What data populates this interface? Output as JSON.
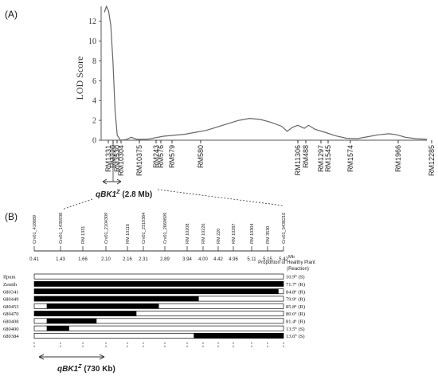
{
  "panel_a_label": "(A)",
  "panel_b_label": "(B)",
  "chart_data": [
    {
      "type": "line",
      "ylabel": "LOD Score",
      "yticks": [
        0,
        2,
        4,
        6,
        8,
        10,
        12
      ],
      "ylim": [
        0,
        13.5
      ],
      "markers": [
        "RM1331",
        "RM220",
        "RM3530",
        "RM10304",
        "RM10375",
        "RM243",
        "RM576",
        "RM579",
        "RM580",
        "RM11306",
        "RM488",
        "RM1297",
        "RM1545",
        "RM1574",
        "RM1966",
        "RM12285"
      ],
      "series": [
        {
          "values": [
            {
              "pos": 0,
              "lod": 12.9
            },
            {
              "pos": 2,
              "lod": 13.5
            },
            {
              "pos": 4,
              "lod": 13.0
            },
            {
              "pos": 6,
              "lod": 11.6
            },
            {
              "pos": 8,
              "lod": 8.0
            },
            {
              "pos": 10,
              "lod": 3.0
            },
            {
              "pos": 12,
              "lod": 0.5
            },
            {
              "pos": 15,
              "lod": 0.0
            },
            {
              "pos": 20,
              "lod": 0.05
            },
            {
              "pos": 25,
              "lod": 0.3
            },
            {
              "pos": 30,
              "lod": 0.1
            },
            {
              "pos": 40,
              "lod": 0.1
            },
            {
              "pos": 55,
              "lod": 0.4
            },
            {
              "pos": 75,
              "lod": 0.6
            },
            {
              "pos": 95,
              "lod": 1.0
            },
            {
              "pos": 110,
              "lod": 1.5
            },
            {
              "pos": 125,
              "lod": 2.0
            },
            {
              "pos": 135,
              "lod": 2.2
            },
            {
              "pos": 145,
              "lod": 2.1
            },
            {
              "pos": 155,
              "lod": 1.8
            },
            {
              "pos": 165,
              "lod": 1.4
            },
            {
              "pos": 170,
              "lod": 0.9
            },
            {
              "pos": 175,
              "lod": 1.3
            },
            {
              "pos": 180,
              "lod": 1.5
            },
            {
              "pos": 186,
              "lod": 1.2
            },
            {
              "pos": 190,
              "lod": 1.5
            },
            {
              "pos": 196,
              "lod": 1.1
            },
            {
              "pos": 205,
              "lod": 0.8
            },
            {
              "pos": 215,
              "lod": 0.45
            },
            {
              "pos": 225,
              "lod": 0.2
            },
            {
              "pos": 235,
              "lod": 0.15
            },
            {
              "pos": 245,
              "lod": 0.35
            },
            {
              "pos": 255,
              "lod": 0.55
            },
            {
              "pos": 265,
              "lod": 0.65
            },
            {
              "pos": 272,
              "lod": 0.55
            },
            {
              "pos": 280,
              "lod": 0.3
            },
            {
              "pos": 290,
              "lod": 0.15
            },
            {
              "pos": 300,
              "lod": 0.1
            }
          ]
        }
      ],
      "interval_label": "qBK1",
      "interval_superscript": "Z",
      "interval_size": "(2.8 Mb)"
    },
    {
      "type": "table",
      "markers": [
        "Crv01_418689",
        "Crv01_1435938",
        "RM 1331",
        "Crv01_2104309",
        "RM 10116",
        "Crv01_2310384",
        "Crv01_2669699",
        "RM 10208",
        "RM 10226",
        "RM 220",
        "RM 10287",
        "RM 10304",
        "RM 3530",
        "Crv01_5436210"
      ],
      "positions": [
        "0.41",
        "1.43",
        "1.66",
        "2.10",
        "2.16",
        "2.31",
        "2.89",
        "3.94",
        "4.00",
        "4.42",
        "4.96",
        "5.11",
        "5.15",
        "5.42"
      ],
      "position_unit": "Mb",
      "phenotype_header": "Proportion of Healthy Plant",
      "phenotype_subheader": "(Reaction)",
      "lines": [
        {
          "name": "Ilpum",
          "black_from": null,
          "black_to": null,
          "value": "10.9",
          "group": "b",
          "reaction": "(S)"
        },
        {
          "name": "Zenith",
          "black_from": 0.0,
          "black_to": 1.0,
          "value": "71.7",
          "group": "a",
          "reaction": "(R)"
        },
        {
          "name": "680341",
          "black_from": 0.0,
          "black_to": 0.98,
          "value": "84.8",
          "group": "a",
          "reaction": "(R)"
        },
        {
          "name": "680449",
          "black_from": 0.0,
          "black_to": 0.66,
          "value": "79.9",
          "group": "a",
          "reaction": "(R)"
        },
        {
          "name": "680453",
          "black_from": 0.05,
          "black_to": 0.5,
          "value": "85.8",
          "group": "a",
          "reaction": "(R)"
        },
        {
          "name": "680470",
          "black_from": 0.0,
          "black_to": 0.41,
          "value": "80.6",
          "group": "a",
          "reaction": "(R)"
        },
        {
          "name": "680408",
          "black_from": 0.05,
          "black_to": 0.25,
          "value": "81.4",
          "group": "a",
          "reaction": "(R)"
        },
        {
          "name": "680400",
          "black_from": 0.05,
          "black_to": 0.14,
          "value": "13.5",
          "group": "b",
          "reaction": "(S)"
        },
        {
          "name": "680384",
          "black_from": 0.64,
          "black_to": 1.0,
          "value": "13.6",
          "group": "b",
          "reaction": "(S)"
        }
      ],
      "interval_label": "qBK1",
      "interval_superscript": "Z",
      "interval_size": "(730 Kb)"
    }
  ]
}
